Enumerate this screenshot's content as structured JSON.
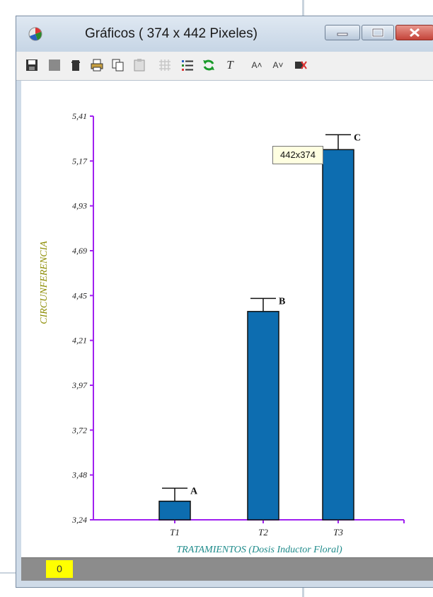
{
  "window": {
    "title": "Gráficos ( 374 x 442 Pixeles)",
    "accent_color": "#0d6db0",
    "close_color": "#c4443a"
  },
  "toolbar": {
    "items": [
      {
        "icon": "save-icon"
      },
      {
        "icon": "gray-square-icon"
      },
      {
        "icon": "trash-icon"
      },
      {
        "icon": "print-icon"
      },
      {
        "icon": "copy-icon"
      },
      {
        "icon": "paste-icon"
      },
      {
        "icon": "grid-icon"
      },
      {
        "icon": "legend-icon"
      },
      {
        "icon": "refresh-icon"
      },
      {
        "icon": "text-icon",
        "glyph": "T"
      },
      {
        "icon": "font-increase-icon",
        "glyph": "A˄"
      },
      {
        "icon": "font-decrease-icon",
        "glyph": "A˅"
      },
      {
        "icon": "clear-icon"
      }
    ]
  },
  "tooltip": {
    "text": "442x374"
  },
  "status": {
    "value": "0"
  },
  "chart_data": {
    "type": "bar",
    "categories": [
      "T1",
      "T2",
      "T3"
    ],
    "values": [
      3.34,
      4.36,
      5.23
    ],
    "error_upper": [
      3.41,
      4.43,
      5.31
    ],
    "significance_letters": [
      "A",
      "B",
      "C"
    ],
    "yticks": [
      "5,41",
      "5,17",
      "4,93",
      "4,69",
      "4,45",
      "4,21",
      "3,97",
      "3,72",
      "3,48",
      "3,24"
    ],
    "ylim": [
      3.24,
      5.41
    ],
    "xlabel": "TRATAMIENTOS (Dosis Inductor Floral)",
    "ylabel": "CIRCUNFERENCIA",
    "axis_color": "#a020f0",
    "bar_color": "#0d6db0",
    "xlabel_color": "#1d8a8a",
    "ylabel_color": "#8c8c00",
    "grid": false
  }
}
